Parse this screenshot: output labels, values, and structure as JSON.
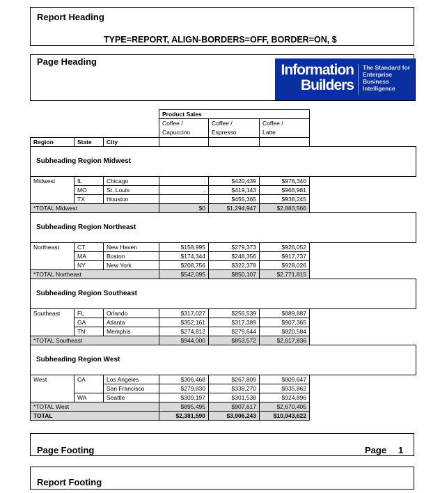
{
  "report_heading": {
    "title": "Report Heading",
    "subtitle": "TYPE=REPORT, ALIGN-BORDERS=OFF, BORDER=ON, $"
  },
  "page_heading": {
    "title": "Page Heading"
  },
  "logo": {
    "line1": "Information",
    "line2": "Builders",
    "tagline": [
      "The Standard for",
      "Enterprise",
      "Business",
      "Intelligence"
    ],
    "color": "#0a2fa0"
  },
  "table": {
    "group_header": "Product Sales",
    "product_columns": [
      [
        "Coffee /",
        "Capuccino"
      ],
      [
        "Coffee /",
        "Espresso"
      ],
      [
        "Coffee /",
        "Latte"
      ]
    ],
    "columns": [
      "Region",
      "State",
      "City"
    ],
    "groups": [
      {
        "subheading": "Subheading Region Midwest",
        "region": "Midwest",
        "rows": [
          {
            "state": "IL",
            "city": "Chicago",
            "values": [
              ".",
              "$420,439",
              "$978,340"
            ]
          },
          {
            "state": "MO",
            "city": "St. Louis",
            "values": [
              ".",
              "$419,143",
              "$966,981"
            ]
          },
          {
            "state": "TX",
            "city": "Houston",
            "values": [
              ".",
              "$455,365",
              "$938,245"
            ]
          }
        ],
        "total_label": "*TOTAL Midwest",
        "totals": [
          "$0",
          "$1,294,947",
          "$2,883,566"
        ]
      },
      {
        "subheading": "Subheading Region Northeast",
        "region": "Northeast",
        "rows": [
          {
            "state": "CT",
            "city": "New Haven",
            "values": [
              "$158,995",
              "$279,373",
              "$926,052"
            ]
          },
          {
            "state": "MA",
            "city": "Boston",
            "values": [
              "$174,344",
              "$248,356",
              "$917,737"
            ]
          },
          {
            "state": "NY",
            "city": "New York",
            "values": [
              "$208,756",
              "$322,378",
              "$928,026"
            ]
          }
        ],
        "total_label": "*TOTAL Northeast",
        "totals": [
          "$542,095",
          "$850,107",
          "$2,771,815"
        ]
      },
      {
        "subheading": "Subheading Region Southeast",
        "region": "Southeast",
        "rows": [
          {
            "state": "FL",
            "city": "Orlando",
            "values": [
              "$317,027",
              "$256,539",
              "$889,887"
            ]
          },
          {
            "state": "GA",
            "city": "Atlanta",
            "values": [
              "$352,161",
              "$317,389",
              "$907,365"
            ]
          },
          {
            "state": "TN",
            "city": "Memphis",
            "values": [
              "$274,812",
              "$279,644",
              "$820,584"
            ]
          }
        ],
        "total_label": "*TOTAL Southeast",
        "totals": [
          "$944,000",
          "$853,572",
          "$2,617,836"
        ]
      },
      {
        "subheading": "Subheading Region West",
        "region": "West",
        "rows": [
          {
            "state": "CA",
            "city": "Los Angeles",
            "values": [
              "$306,468",
              "$267,809",
              "$809,647"
            ]
          },
          {
            "state": "",
            "city": "San Francisco",
            "values": [
              "$279,830",
              "$338,270",
              "$935,862"
            ]
          },
          {
            "state": "WA",
            "city": "Seattle",
            "values": [
              "$309,197",
              "$301,538",
              "$924,896"
            ]
          }
        ],
        "total_label": "*TOTAL West",
        "totals": [
          "$895,495",
          "$907,617",
          "$2,670,405"
        ]
      }
    ],
    "grand_total_label": "TOTAL",
    "grand_totals": [
      "$2,381,590",
      "$3,906,243",
      "$10,943,622"
    ]
  },
  "page_footing": {
    "title": "Page Footing",
    "page_label": "Page",
    "page_number": "1"
  },
  "report_footing": {
    "title": "Report Footing"
  }
}
